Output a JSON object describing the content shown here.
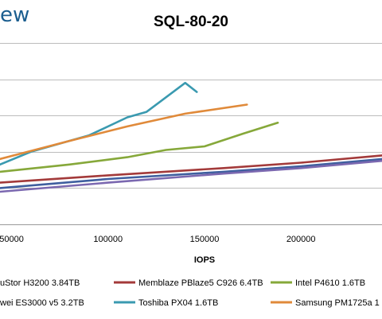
{
  "brand_fragment": "ew",
  "chart_data": {
    "type": "line",
    "title": "SQL-80-20",
    "xlabel": "IOPS",
    "ylabel": "",
    "x_ticks": [
      {
        "value": 50000,
        "label": "50000"
      },
      {
        "value": 100000,
        "label": "100000"
      },
      {
        "value": 150000,
        "label": "150000"
      },
      {
        "value": 200000,
        "label": "200000"
      }
    ],
    "xlim": [
      44000,
      242000
    ],
    "ylim": [
      0,
      10
    ],
    "grid": true,
    "legend_position": "bottom",
    "series": [
      {
        "name": "uStor H3200 3.84TB",
        "color": "#3f5f9f",
        "points": [
          [
            44000,
            2.0
          ],
          [
            100000,
            2.5
          ],
          [
            160000,
            2.9
          ],
          [
            200000,
            3.2
          ],
          [
            242000,
            3.6
          ]
        ]
      },
      {
        "name": "Memblaze PBlaze5 C926 6.4TB",
        "color": "#a33a3a",
        "points": [
          [
            44000,
            2.3
          ],
          [
            100000,
            2.7
          ],
          [
            160000,
            3.1
          ],
          [
            200000,
            3.4
          ],
          [
            242000,
            3.8
          ]
        ]
      },
      {
        "name": "Intel P4610 1.6TB",
        "color": "#86a83a",
        "points": [
          [
            44000,
            2.9
          ],
          [
            80000,
            3.3
          ],
          [
            110000,
            3.7
          ],
          [
            130000,
            4.1
          ],
          [
            150000,
            4.3
          ],
          [
            170000,
            5.0
          ],
          [
            188000,
            5.6
          ]
        ]
      },
      {
        "name": "wei ES3000 v5 3.2TB",
        "color": "#7b68b0",
        "points": [
          [
            44000,
            1.8
          ],
          [
            100000,
            2.3
          ],
          [
            160000,
            2.8
          ],
          [
            200000,
            3.1
          ],
          [
            242000,
            3.5
          ]
        ]
      },
      {
        "name": "Toshiba PX04 1.6TB",
        "color": "#3a9ab0",
        "points": [
          [
            44000,
            3.3
          ],
          [
            60000,
            4.0
          ],
          [
            90000,
            4.9
          ],
          [
            110000,
            5.9
          ],
          [
            120000,
            6.2
          ],
          [
            140000,
            7.8
          ],
          [
            146000,
            7.3
          ]
        ]
      },
      {
        "name": "Samsung PM1725a 1",
        "color": "#e08a3a",
        "points": [
          [
            44000,
            3.6
          ],
          [
            80000,
            4.6
          ],
          [
            110000,
            5.4
          ],
          [
            140000,
            6.1
          ],
          [
            172000,
            6.6
          ]
        ]
      }
    ]
  }
}
